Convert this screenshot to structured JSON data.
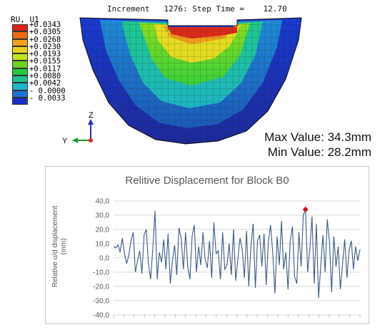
{
  "viewport": {
    "title": "Increment   1276: Step Time =    12.70",
    "legend_title": "RU, U1",
    "legend_labels": [
      "+0.0343",
      "+0.0305",
      "+0.0268",
      "+0.0230",
      "+0.0193",
      "+0.0155",
      "+0.0117",
      "+0.0080",
      "+0.0042",
      "- 0.0000",
      "- 0.0033"
    ],
    "legend_colors": [
      "#e0201a",
      "#ee6a12",
      "#f2a01c",
      "#e8d21c",
      "#bfe41c",
      "#6ed21e",
      "#26c83c",
      "#1ec28e",
      "#1eb4cc",
      "#1a74d6",
      "#1c2ec8"
    ],
    "max_value": "Max Value: 34.3mm",
    "min_value": "Min Value: 28.2mm",
    "axis_z": "Z",
    "axis_y": "Y"
  },
  "chart_data": {
    "type": "line",
    "title": "Relitive Displacement for Block B0",
    "ylabel": "Relative u/d displacement (mm)",
    "ylabel_lines": [
      "Relative u/d displacement",
      "(mm)"
    ],
    "ylim": [
      -40,
      40
    ],
    "yticks": [
      "40,0",
      "30,0",
      "20,0",
      "10,0",
      "0,0",
      "-10,0",
      "-20,0",
      "-30,0",
      "-40,0"
    ],
    "ytick_values": [
      40,
      30,
      20,
      10,
      0,
      -10,
      -20,
      -30,
      -40
    ],
    "line_color": "#3a5a86",
    "marker_color": "#c0171b",
    "marker_index": 88,
    "values": [
      8,
      7,
      9,
      4,
      14,
      3,
      -4,
      2,
      12,
      18,
      -10,
      -2,
      5,
      -11,
      16,
      20,
      -4,
      -15,
      7,
      33,
      -15,
      4,
      -3,
      13,
      -8,
      17,
      -18,
      -2,
      9,
      -12,
      21,
      14,
      -8,
      18,
      -6,
      -15,
      15,
      23,
      -10,
      8,
      -5,
      18,
      -1,
      -7,
      12,
      -14,
      25,
      3,
      5,
      -15,
      18,
      -8,
      -5,
      10,
      -12,
      20,
      -16,
      -1,
      14,
      6,
      -14,
      19,
      -20,
      8,
      24,
      -21,
      12,
      16,
      -6,
      17,
      -19,
      12,
      23,
      3,
      -25,
      15,
      -5,
      26,
      -8,
      4,
      -22,
      12,
      22,
      -13,
      -18,
      18,
      -6,
      30,
      34,
      -10,
      6,
      29,
      -18,
      24,
      -28,
      -6,
      16,
      -10,
      27,
      11,
      -24,
      15,
      -6,
      8,
      -22,
      -4,
      13,
      -14,
      5,
      12,
      -8,
      8,
      -2,
      6
    ],
    "grid": true,
    "series": [
      {
        "values_ref": "values"
      }
    ]
  }
}
